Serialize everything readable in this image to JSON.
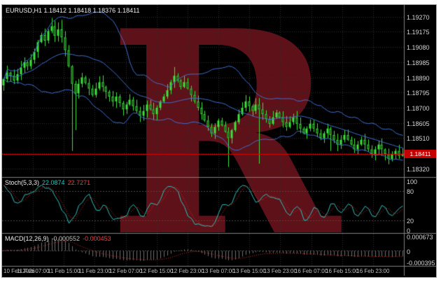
{
  "main": {
    "title": "EURUSD,H1 1.18412 1.18418 1.18376 1.18411",
    "bid": "1.18411",
    "scale_ticks": [
      "1.19270",
      "1.19175",
      "1.19080",
      "1.18985",
      "1.18890",
      "1.18795",
      "1.18700",
      "1.18605",
      "1.18510",
      "1.18415",
      "1.18320"
    ]
  },
  "stoch": {
    "name": "Stoch(5,3,3)",
    "value_main": "22.0874",
    "value_signal": "22.7271",
    "scale_ticks": [
      "100",
      "80",
      "20",
      "0"
    ],
    "levels": [
      80,
      20
    ]
  },
  "macd": {
    "name": "MACD(12,26,9)",
    "value_main": "-0.000552",
    "value_signal": "-0.000453",
    "scale_ticks": [
      "0.000673",
      "0",
      "-0.000395"
    ]
  },
  "time_axis": {
    "labels": [
      "10 Feb 2026",
      "11 Feb 07:00",
      "11 Feb 15:00",
      "11 Feb 23:00",
      "12 Feb 07:00",
      "12 Feb 15:00",
      "12 Feb 23:00",
      "13 Feb 07:00",
      "13 Feb 15:00",
      "13 Feb 23:00",
      "16 Feb 07:00",
      "16 Feb 15:00",
      "16 Feb 23:00"
    ]
  },
  "watermark": {
    "letter": "R",
    "color": "#5e1118"
  },
  "colors": {
    "background": "#000000",
    "grid": "#2f2f2f",
    "candle": "#3ce23c",
    "bollinger": "#3f6fd0",
    "bid_line": "#dd0000",
    "badge_bg": "#c40000",
    "stoch_main": "#2fc4bc",
    "stoch_signal": "#e03030",
    "macd_hist": "#6f6f6f",
    "macd_signal": "#e03030",
    "separator": "#808080"
  },
  "chart_data": {
    "type": "candlestick",
    "symbol": "EURUSD",
    "timeframe": "H1",
    "price_range": [
      1.1828,
      1.1933
    ],
    "bid": 1.18411,
    "closes": [
      1.1888,
      1.1892,
      1.189,
      1.1887,
      1.1891,
      1.1895,
      1.18985,
      1.1896,
      1.19,
      1.1905,
      1.1911,
      1.19155,
      1.1912,
      1.1918,
      1.1921,
      1.1915,
      1.1919,
      1.1914,
      1.1906,
      1.1896,
      1.1885,
      1.1879,
      1.1885,
      1.1889,
      1.18855,
      1.1882,
      1.1878,
      1.1882,
      1.1886,
      1.1883,
      1.188,
      1.1877,
      1.1874,
      1.1877,
      1.1873,
      1.1869,
      1.1872,
      1.1875,
      1.1871,
      1.1868,
      1.1865,
      1.1868,
      1.1872,
      1.1869,
      1.1866,
      1.187,
      1.1874,
      1.1877,
      1.1881,
      1.1886,
      1.189,
      1.1887,
      1.1883,
      1.1886,
      1.1882,
      1.1878,
      1.1874,
      1.187,
      1.1866,
      1.1862,
      1.1858,
      1.1854,
      1.1858,
      1.1862,
      1.1859,
      1.1855,
      1.1851,
      1.1856,
      1.1861,
      1.1866,
      1.187,
      1.1874,
      1.1871,
      1.1868,
      1.1872,
      1.1869,
      1.1866,
      1.1863,
      1.186,
      1.1864,
      1.1867,
      1.1864,
      1.1861,
      1.1858,
      1.1861,
      1.1864,
      1.186,
      1.1857,
      1.1854,
      1.1857,
      1.186,
      1.1857,
      1.1854,
      1.1851,
      1.1854,
      1.1857,
      1.1853,
      1.185,
      1.1847,
      1.185,
      1.1853,
      1.185,
      1.1847,
      1.1844,
      1.1847,
      1.185,
      1.1847,
      1.1844,
      1.1841,
      1.1844,
      1.1847,
      1.1844,
      1.1841,
      1.1838,
      1.1841,
      1.1843,
      1.184,
      1.18411
    ],
    "special_highs": {
      "14": 1.19262,
      "17": 1.1925,
      "50": 1.18955
    },
    "special_lows": {
      "20": 1.1843,
      "21": 1.1856,
      "66": 1.1833,
      "75": 1.1835,
      "96": 1.1843,
      "113": 1.1835
    },
    "indicators": {
      "bollinger_period": 20,
      "bollinger_dev": 2,
      "stochastic": [
        5,
        3,
        3
      ],
      "macd": [
        12,
        26,
        9
      ]
    }
  }
}
